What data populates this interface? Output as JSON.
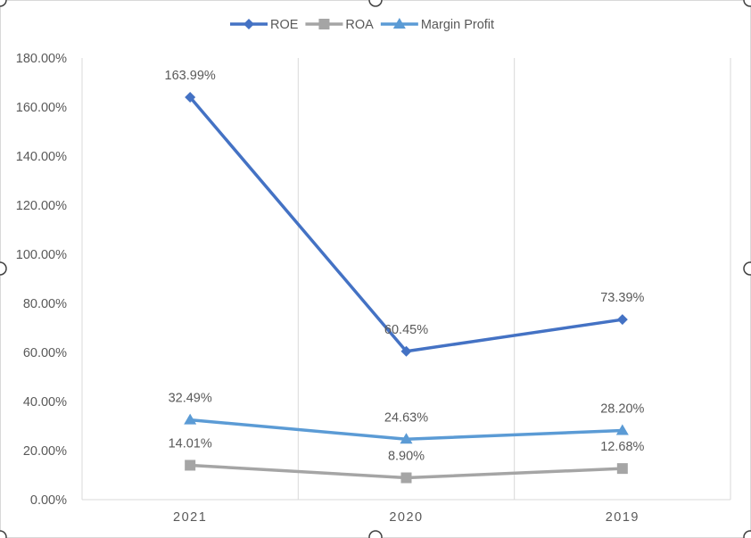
{
  "chart_data": {
    "type": "line",
    "title": "",
    "xlabel": "",
    "ylabel": "",
    "categories": [
      "2021",
      "2020",
      "2019"
    ],
    "ylim": [
      0,
      180
    ],
    "yticks": [
      "0.00%",
      "20.00%",
      "40.00%",
      "60.00%",
      "80.00%",
      "100.00%",
      "120.00%",
      "140.00%",
      "160.00%",
      "180.00%"
    ],
    "grid": "vertical",
    "legend_position": "top",
    "series": [
      {
        "name": "ROE",
        "values": [
          163.99,
          60.45,
          73.39
        ],
        "labels": [
          "163.99%",
          "60.45%",
          "73.39%"
        ],
        "color": "#4472C4",
        "marker": "diamond"
      },
      {
        "name": "ROA",
        "values": [
          14.01,
          8.9,
          12.68
        ],
        "labels": [
          "14.01%",
          "8.90%",
          "12.68%"
        ],
        "color": "#A5A5A5",
        "marker": "square"
      },
      {
        "name": "Margin Profit",
        "values": [
          32.49,
          24.63,
          28.2
        ],
        "labels": [
          "32.49%",
          "24.63%",
          "28.20%"
        ],
        "color": "#5B9BD5",
        "marker": "triangle"
      }
    ]
  }
}
